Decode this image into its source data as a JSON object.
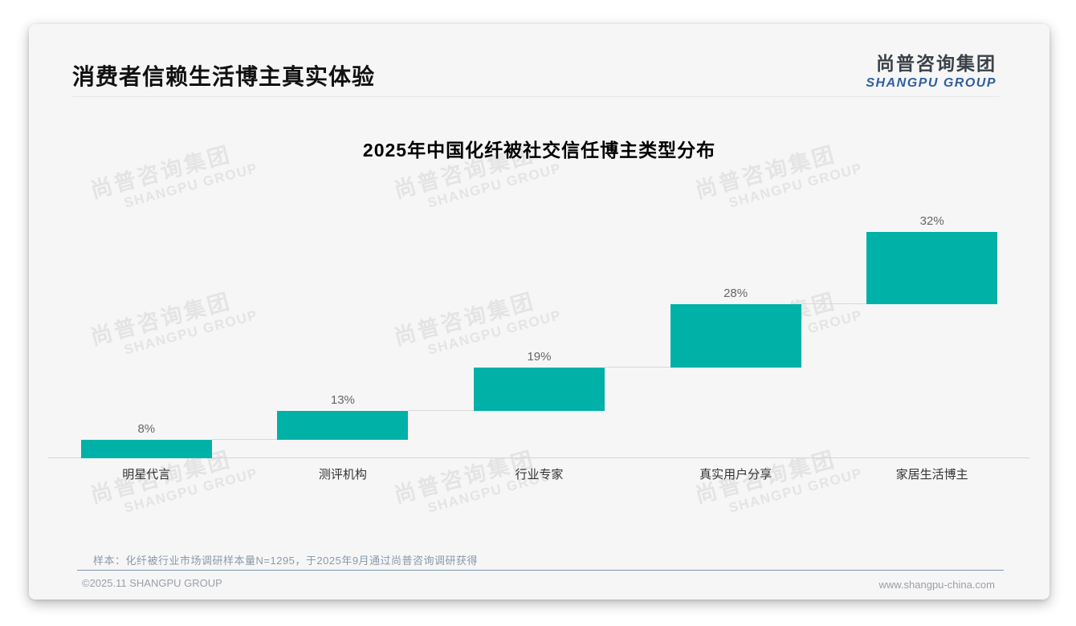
{
  "page": {
    "title": "消费者信赖生活博主真实体验",
    "logo": {
      "cn": "尚普咨询集团",
      "en": "SHANGPU GROUP"
    },
    "watermark": {
      "cn": "尚普咨询集团",
      "en": "SHANGPU GROUP"
    },
    "footer": {
      "sample_note": "样本：化纤被行业市场调研样本量N=1295，于2025年9月通过尚普咨询调研获得",
      "copyright": "©2025.11 SHANGPU GROUP",
      "website": "www.shangpu-china.com"
    }
  },
  "chart_data": {
    "type": "bar",
    "subtype": "cumulative-waterfall-steps",
    "title": "2025年中国化纤被社交信任博主类型分布",
    "categories": [
      "明星代言",
      "测评机构",
      "行业专家",
      "真实用户分享",
      "家居生活博主"
    ],
    "values": [
      8,
      13,
      19,
      28,
      32
    ],
    "value_labels": [
      "8%",
      "13%",
      "19%",
      "28%",
      "32%"
    ],
    "unit": "%",
    "ylim": [
      0,
      100
    ],
    "cumulative": true,
    "grid": false,
    "colors": {
      "bar": "#00b1a8",
      "value_label": "#666666",
      "category_label": "#333333",
      "connector": "#d9d9d9",
      "baseline": "#d5d5d5"
    }
  }
}
